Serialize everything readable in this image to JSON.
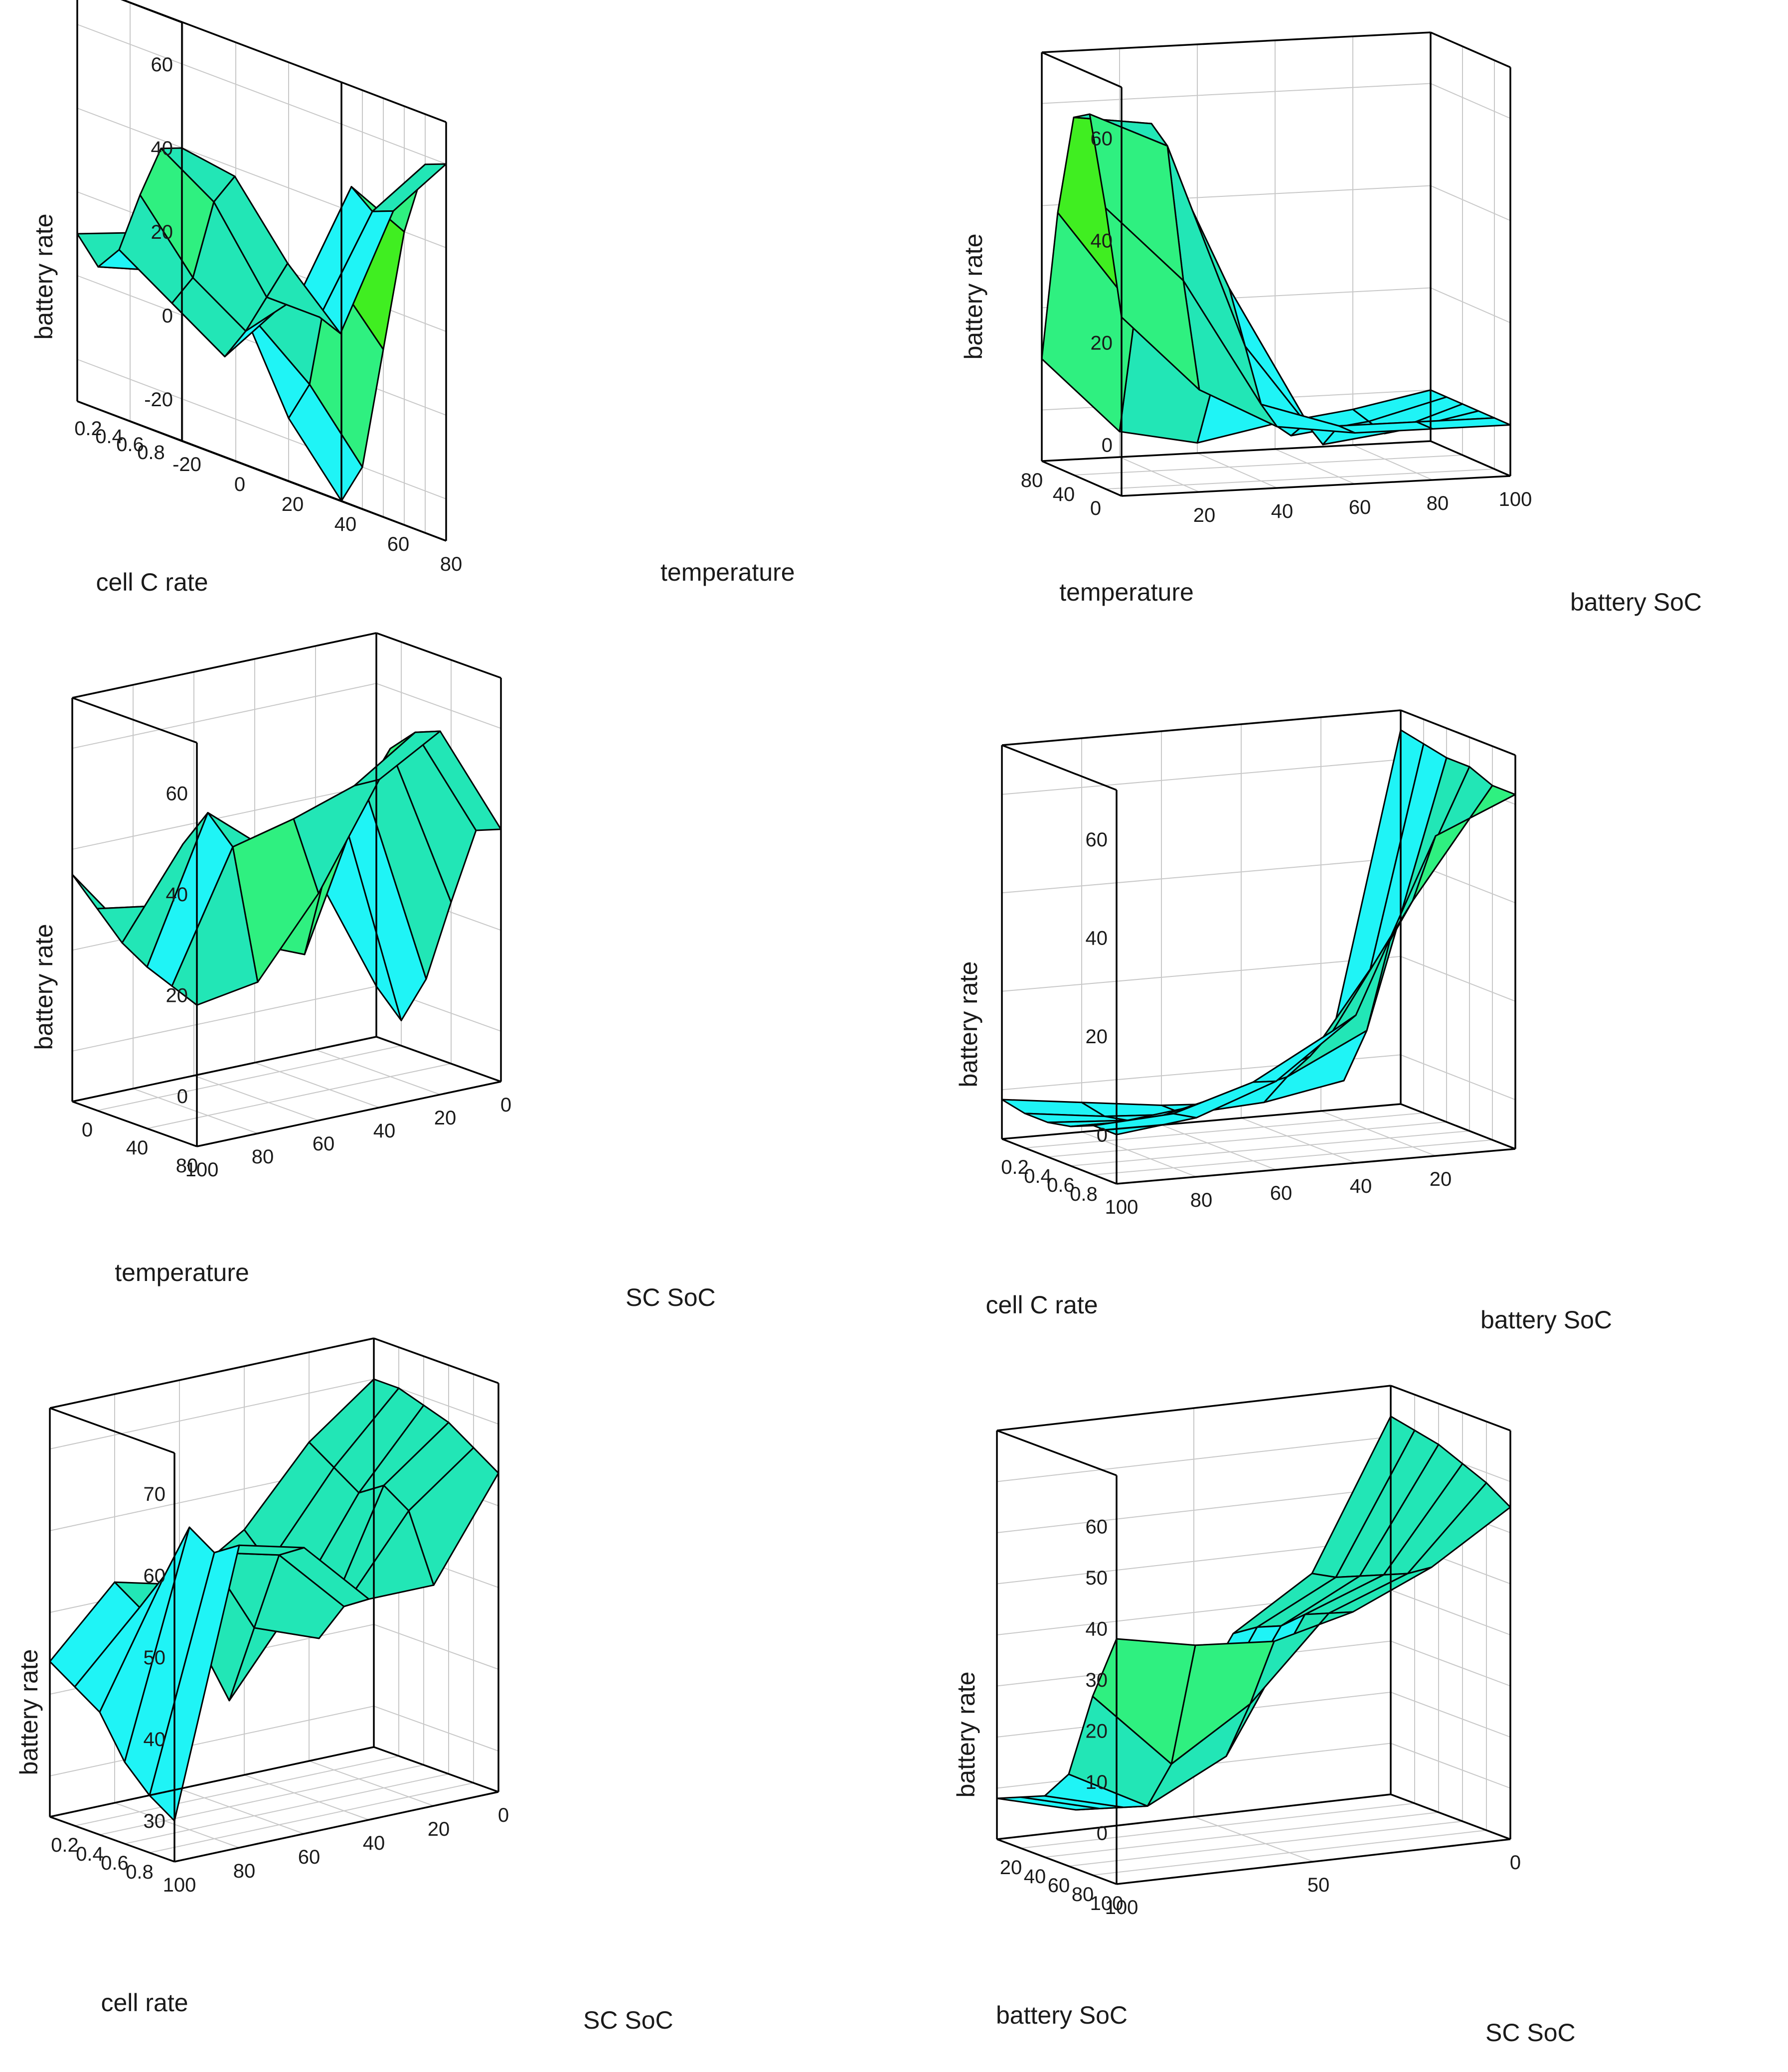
{
  "palette": [
    "#0b18e8",
    "#1f66f2",
    "#2ab8f5",
    "#1ff4f6",
    "#22e6b6",
    "#2ff080",
    "#40ee21"
  ],
  "accent_colors": {
    "magenta": "#ff1ee0",
    "violet": "#7b1bf0",
    "blue": "#0b18e8"
  },
  "chart_data": [
    {
      "id": "p1",
      "type": "surface",
      "xlabel": "cell C rate",
      "ylabel": "temperature",
      "zlabel": "battery rate",
      "xlim": [
        0,
        1
      ],
      "ylim": [
        -20,
        80
      ],
      "zlim": [
        -30,
        70
      ],
      "xticks": [
        "0.8",
        "0.6",
        "0.4",
        "0.2"
      ],
      "xtick_values": [
        0.8,
        0.6,
        0.4,
        0.2
      ],
      "yticks": [
        "-20",
        "0",
        "20",
        "40",
        "60",
        "80"
      ],
      "ytick_values": [
        -20,
        0,
        20,
        40,
        60,
        80
      ],
      "zticks": [
        "60",
        "40",
        "20",
        "0",
        "-20"
      ],
      "ztick_values": [
        60,
        40,
        20,
        0,
        -20
      ],
      "x": [
        1.0,
        0.8,
        0.6,
        0.4,
        0.2,
        0.0
      ],
      "y": [
        -20,
        0,
        20,
        40,
        60,
        80
      ],
      "z": [
        [
          40,
          38,
          22,
          10,
          44,
          60
        ],
        [
          38,
          30,
          12,
          12,
          42,
          58
        ],
        [
          25,
          10,
          2,
          15,
          46,
          40
        ],
        [
          10,
          2,
          -6,
          10,
          24,
          10
        ],
        [
          4,
          8,
          12,
          5,
          -5,
          -20
        ],
        [
          10,
          15,
          20,
          10,
          -15,
          -32
        ]
      ]
    },
    {
      "id": "p2",
      "type": "surface",
      "xlabel": "temperature",
      "ylabel": "battery SoC",
      "zlabel": "battery rate",
      "xlim": [
        -20,
        80
      ],
      "ylim": [
        0,
        100
      ],
      "zlim": [
        -10,
        70
      ],
      "xticks": [
        "0",
        "40",
        "80"
      ],
      "xtick_values": [
        0,
        40,
        80
      ],
      "yticks": [
        "20",
        "40",
        "60",
        "80",
        "100"
      ],
      "ytick_values": [
        20,
        40,
        60,
        80,
        100
      ],
      "zticks": [
        "60",
        "40",
        "20",
        "0"
      ],
      "ztick_values": [
        60,
        40,
        20,
        0
      ],
      "x": [
        -20,
        0,
        20,
        40,
        60,
        80
      ],
      "y": [
        0,
        20,
        40,
        60,
        80,
        100
      ],
      "z": [
        [
          25,
          10,
          2,
          0,
          0,
          0
        ],
        [
          45,
          30,
          5,
          0,
          0,
          0
        ],
        [
          62,
          55,
          15,
          -5,
          -3,
          0
        ],
        [
          60,
          58,
          25,
          -2,
          -5,
          0
        ],
        [
          40,
          20,
          5,
          -6,
          -4,
          0
        ],
        [
          10,
          -5,
          -8,
          -5,
          -3,
          0
        ]
      ]
    },
    {
      "id": "p3",
      "type": "surface",
      "xlabel": "temperature",
      "ylabel": "SC SoC",
      "zlabel": "battery rate",
      "xlim": [
        -20,
        80
      ],
      "ylim": [
        0,
        100
      ],
      "zlim": [
        -10,
        70
      ],
      "xticks": [
        "80",
        "40",
        "0"
      ],
      "xtick_values": [
        80,
        40,
        0
      ],
      "yticks": [
        "100",
        "80",
        "60",
        "40",
        "20",
        "0"
      ],
      "ytick_values": [
        100,
        80,
        60,
        40,
        20,
        0
      ],
      "zticks": [
        "60",
        "40",
        "20",
        "0"
      ],
      "ztick_values": [
        60,
        40,
        20,
        0
      ],
      "x": [
        80,
        60,
        40,
        20,
        0,
        -20
      ],
      "y": [
        100,
        80,
        60,
        40,
        20,
        0
      ],
      "z": [
        [
          18,
          20,
          35,
          55,
          62,
          40
        ],
        [
          20,
          45,
          48,
          52,
          60,
          38
        ],
        [
          22,
          50,
          40,
          36,
          55,
          22
        ],
        [
          25,
          42,
          20,
          15,
          45,
          5
        ],
        [
          30,
          28,
          8,
          20,
          40,
          -5
        ],
        [
          35,
          20,
          5,
          10,
          25,
          0
        ]
      ]
    },
    {
      "id": "p4",
      "type": "surface",
      "xlabel": "cell C rate",
      "ylabel": "battery SoC",
      "zlabel": "battery rate",
      "xlim": [
        0,
        1
      ],
      "ylim": [
        0,
        100
      ],
      "zlim": [
        -10,
        70
      ],
      "xticks": [
        "0.8",
        "0.6",
        "0.4",
        "0.2"
      ],
      "xtick_values": [
        0.8,
        0.6,
        0.4,
        0.2
      ],
      "yticks": [
        "100",
        "80",
        "60",
        "40",
        "20"
      ],
      "ytick_values": [
        100,
        80,
        60,
        40,
        20
      ],
      "zticks": [
        "60",
        "40",
        "20",
        "0"
      ],
      "ztick_values": [
        60,
        40,
        20,
        0
      ],
      "x": [
        1.0,
        0.8,
        0.6,
        0.4,
        0.2,
        0.0
      ],
      "y": [
        100,
        80,
        60,
        40,
        20,
        0
      ],
      "z": [
        [
          0,
          2,
          8,
          20,
          55,
          62
        ],
        [
          0,
          1,
          6,
          15,
          40,
          62
        ],
        [
          -2,
          -2,
          2,
          8,
          30,
          64
        ],
        [
          -3,
          -4,
          -2,
          2,
          10,
          64
        ],
        [
          -3,
          -5,
          -6,
          -5,
          -2,
          65
        ],
        [
          -2,
          -4,
          -6,
          -7,
          -5,
          66
        ]
      ]
    },
    {
      "id": "p5",
      "type": "surface",
      "xlabel": "cell rate",
      "ylabel": "SC SoC",
      "zlabel": "battery rate",
      "xlim": [
        0,
        1
      ],
      "ylim": [
        0,
        100
      ],
      "zlim": [
        25,
        75
      ],
      "xticks": [
        "0.8",
        "0.6",
        "0.4",
        "0.2"
      ],
      "xtick_values": [
        0.8,
        0.6,
        0.4,
        0.2
      ],
      "yticks": [
        "100",
        "80",
        "60",
        "40",
        "20",
        "0"
      ],
      "ytick_values": [
        100,
        80,
        60,
        40,
        20,
        0
      ],
      "zticks": [
        "70",
        "60",
        "50",
        "40",
        "30"
      ],
      "ztick_values": [
        70,
        60,
        50,
        40,
        30
      ],
      "x": [
        1.0,
        0.8,
        0.6,
        0.4,
        0.2,
        0.0
      ],
      "y": [
        100,
        80,
        60,
        40,
        20,
        0
      ],
      "z": [
        [
          30,
          62,
          60,
          52,
          52,
          64
        ],
        [
          32,
          60,
          58,
          50,
          60,
          66
        ],
        [
          35,
          62,
          48,
          45,
          62,
          68
        ],
        [
          40,
          55,
          38,
          48,
          60,
          69
        ],
        [
          42,
          50,
          45,
          52,
          62,
          70
        ],
        [
          44,
          52,
          50,
          55,
          64,
          70
        ]
      ]
    },
    {
      "id": "p6",
      "type": "surface",
      "xlabel": "battery SoC",
      "ylabel": "SC SoC",
      "zlabel": "battery rate",
      "xlim": [
        0,
        100
      ],
      "ylim": [
        0,
        100
      ],
      "zlim": [
        -10,
        70
      ],
      "xticks": [
        "100",
        "80",
        "60",
        "40",
        "20"
      ],
      "xtick_values": [
        100,
        80,
        60,
        40,
        20
      ],
      "yticks": [
        "100",
        "50",
        "0"
      ],
      "ytick_values": [
        100,
        50,
        0
      ],
      "zticks": [
        "60",
        "50",
        "40",
        "30",
        "20",
        "10",
        "0"
      ],
      "ztick_values": [
        60,
        50,
        40,
        30,
        20,
        10,
        0
      ],
      "x": [
        100,
        80,
        60,
        40,
        20,
        0
      ],
      "y": [
        100,
        80,
        60,
        40,
        20,
        0
      ],
      "z": [
        [
          38,
          35,
          34,
          38,
          45,
          55
        ],
        [
          25,
          10,
          20,
          36,
          42,
          58
        ],
        [
          8,
          0,
          8,
          34,
          40,
          60
        ],
        [
          2,
          -2,
          5,
          30,
          38,
          62
        ],
        [
          0,
          -4,
          2,
          28,
          36,
          63
        ],
        [
          -2,
          -6,
          0,
          25,
          35,
          64
        ]
      ]
    }
  ]
}
